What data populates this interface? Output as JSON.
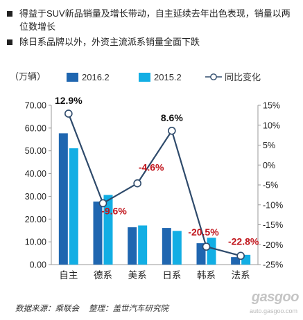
{
  "bullets": [
    "得益于SUV新品销量及增长带动，自主延续去年出色表现，销量以两位数增长",
    "除日系品牌以外，外资主流派系销量全面下跌"
  ],
  "chart_data": {
    "type": "bar",
    "unit_label": "（万辆）",
    "categories": [
      "自主",
      "德系",
      "美系",
      "日系",
      "韩系",
      "法系"
    ],
    "series": [
      {
        "name": "2016.2",
        "type": "bar",
        "axis": "left",
        "color": "#1f66b0",
        "values": [
          57.7,
          27.7,
          16.4,
          16.1,
          9.4,
          3.3
        ]
      },
      {
        "name": "2015.2",
        "type": "bar",
        "axis": "left",
        "color": "#12aee4",
        "values": [
          51.1,
          30.6,
          17.2,
          14.8,
          11.8,
          4.3
        ]
      },
      {
        "name": "同比变化",
        "type": "line",
        "axis": "right",
        "color": "#2e4a6b",
        "values": [
          12.9,
          -9.6,
          -4.6,
          8.6,
          -20.5,
          -22.8
        ],
        "labels": [
          "12.9%",
          "-9.6%",
          "-4.6%",
          "8.6%",
          "-20.5%",
          "-22.8%"
        ]
      }
    ],
    "y_left": {
      "min": 0,
      "max": 70,
      "step": 10,
      "ticks": [
        "0.00",
        "10.00",
        "20.00",
        "30.00",
        "40.00",
        "50.00",
        "60.00",
        "70.00"
      ]
    },
    "y_right": {
      "min": -25,
      "max": 15,
      "step": 5,
      "ticks": [
        "-25%",
        "-20%",
        "-15%",
        "-10%",
        "-5%",
        "0%",
        "5%",
        "10%",
        "15%"
      ]
    },
    "label_colors": {
      "positive": "#111111",
      "negative": "#c0131a"
    },
    "grid": false,
    "legend_position": "top"
  },
  "source": {
    "data_source": "数据来源：乘联会",
    "compiled_by": "整理：盖世汽车研究院"
  },
  "watermark": {
    "logo": "gasgoo",
    "url": "auto.gasgoo.com"
  }
}
